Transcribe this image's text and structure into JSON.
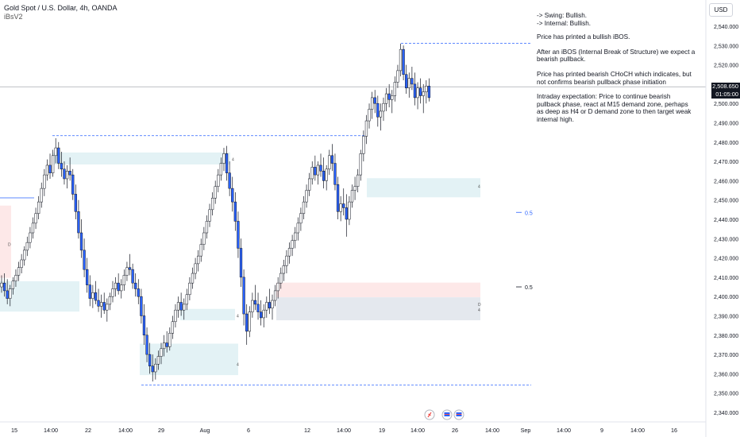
{
  "header": {
    "title": "Gold Spot / U.S. Dollar, 4h, OANDA",
    "indicator": "iBsV2"
  },
  "notes": [
    "-> Swing:  Bullish.\n-> Internal:  Bullish.",
    "Price has printed a bullish iBOS.",
    "After an iBOS (Internal Break of Structure) we expect a bearish pullback.",
    "Price has printed bearish CHoCH which indicates, but not confirms bearish pullback phase initiation",
    "Intraday expectation: Price to continue bearish pullback phase, react at M15 demand zone, perhaps as deep as H4 or D demand zone to then target weak internal high."
  ],
  "currency": "USD",
  "price_tag": {
    "price": "2,508.650",
    "countdown": "01:05:00"
  },
  "colors": {
    "up": "#ffffff",
    "down": "#2962ff",
    "wick": "#131722",
    "demand_zone": "#e3f2f5",
    "supply_zone": "#fde8e8",
    "d_zone": "#e4e8ee",
    "dashed_level": "#2962ff",
    "fib_label": "#2962ff"
  },
  "chart_data": {
    "type": "candlestick",
    "symbol": "XAUUSD",
    "timeframe": "4h",
    "ylim": [
      2337,
      2546
    ],
    "y_ticks": [
      2540,
      2530,
      2520,
      2510,
      2500,
      2490,
      2480,
      2470,
      2460,
      2450,
      2440,
      2430,
      2420,
      2410,
      2400,
      2390,
      2380,
      2370,
      2360,
      2350,
      2340
    ],
    "y_tick_labels": [
      "2,540.000",
      "2,530.000",
      "2,520.000",
      "2,510.000",
      "2,500.000",
      "2,490.000",
      "2,480.000",
      "2,470.000",
      "2,460.000",
      "2,450.000",
      "2,440.000",
      "2,430.000",
      "2,420.000",
      "2,410.000",
      "2,400.000",
      "2,390.000",
      "2,380.000",
      "2,370.000",
      "2,360.000",
      "2,350.000",
      "2,340.000"
    ],
    "x_labels": [
      "15",
      "14:00",
      "22",
      "14:00",
      "29",
      "Aug",
      "6",
      "12",
      "14:00",
      "19",
      "14:00",
      "26",
      "14:00",
      "Sep",
      "14:00",
      "9",
      "14:00",
      "16"
    ],
    "bars_total": 193,
    "current_price": 2508.65,
    "ohlc": [
      [
        2405,
        2411,
        2402,
        2407
      ],
      [
        2407,
        2412,
        2400,
        2403
      ],
      [
        2403,
        2409,
        2396,
        2399
      ],
      [
        2399,
        2406,
        2395,
        2404
      ],
      [
        2404,
        2410,
        2401,
        2408
      ],
      [
        2408,
        2414,
        2405,
        2411
      ],
      [
        2411,
        2418,
        2408,
        2415
      ],
      [
        2415,
        2422,
        2412,
        2419
      ],
      [
        2419,
        2426,
        2416,
        2424
      ],
      [
        2424,
        2431,
        2421,
        2428
      ],
      [
        2428,
        2436,
        2425,
        2433
      ],
      [
        2433,
        2441,
        2430,
        2438
      ],
      [
        2438,
        2446,
        2435,
        2443
      ],
      [
        2443,
        2452,
        2440,
        2449
      ],
      [
        2449,
        2459,
        2446,
        2456
      ],
      [
        2456,
        2466,
        2452,
        2463
      ],
      [
        2463,
        2471,
        2460,
        2468
      ],
      [
        2468,
        2474,
        2461,
        2464
      ],
      [
        2464,
        2476,
        2462,
        2473
      ],
      [
        2473,
        2482,
        2469,
        2477
      ],
      [
        2477,
        2480,
        2466,
        2469
      ],
      [
        2469,
        2475,
        2462,
        2466
      ],
      [
        2466,
        2470,
        2458,
        2461
      ],
      [
        2461,
        2468,
        2456,
        2465
      ],
      [
        2465,
        2472,
        2460,
        2463
      ],
      [
        2463,
        2466,
        2450,
        2453
      ],
      [
        2453,
        2458,
        2440,
        2444
      ],
      [
        2444,
        2450,
        2430,
        2433
      ],
      [
        2433,
        2440,
        2420,
        2424
      ],
      [
        2424,
        2430,
        2410,
        2414
      ],
      [
        2414,
        2420,
        2402,
        2406
      ],
      [
        2406,
        2411,
        2395,
        2399
      ],
      [
        2399,
        2406,
        2394,
        2402
      ],
      [
        2402,
        2408,
        2396,
        2398
      ],
      [
        2398,
        2404,
        2392,
        2395
      ],
      [
        2395,
        2401,
        2389,
        2397
      ],
      [
        2397,
        2402,
        2391,
        2393
      ],
      [
        2393,
        2399,
        2387,
        2396
      ],
      [
        2396,
        2402,
        2393,
        2400
      ],
      [
        2400,
        2408,
        2397,
        2404
      ],
      [
        2404,
        2410,
        2400,
        2407
      ],
      [
        2407,
        2412,
        2401,
        2403
      ],
      [
        2403,
        2409,
        2399,
        2406
      ],
      [
        2406,
        2414,
        2403,
        2411
      ],
      [
        2411,
        2418,
        2408,
        2415
      ],
      [
        2415,
        2422,
        2411,
        2414
      ],
      [
        2414,
        2417,
        2404,
        2407
      ],
      [
        2407,
        2412,
        2400,
        2404
      ],
      [
        2404,
        2409,
        2396,
        2400
      ],
      [
        2400,
        2404,
        2386,
        2390
      ],
      [
        2390,
        2396,
        2375,
        2380
      ],
      [
        2380,
        2384,
        2366,
        2370
      ],
      [
        2370,
        2376,
        2360,
        2364
      ],
      [
        2364,
        2370,
        2356,
        2361
      ],
      [
        2361,
        2368,
        2357,
        2365
      ],
      [
        2365,
        2372,
        2362,
        2369
      ],
      [
        2369,
        2376,
        2365,
        2373
      ],
      [
        2373,
        2380,
        2369,
        2376
      ],
      [
        2376,
        2382,
        2371,
        2374
      ],
      [
        2374,
        2384,
        2372,
        2381
      ],
      [
        2381,
        2390,
        2378,
        2387
      ],
      [
        2387,
        2396,
        2384,
        2393
      ],
      [
        2393,
        2400,
        2389,
        2397
      ],
      [
        2397,
        2402,
        2390,
        2393
      ],
      [
        2393,
        2399,
        2388,
        2396
      ],
      [
        2396,
        2404,
        2393,
        2401
      ],
      [
        2401,
        2410,
        2398,
        2407
      ],
      [
        2407,
        2415,
        2404,
        2412
      ],
      [
        2412,
        2420,
        2409,
        2417
      ],
      [
        2417,
        2424,
        2413,
        2421
      ],
      [
        2421,
        2430,
        2418,
        2427
      ],
      [
        2427,
        2436,
        2424,
        2433
      ],
      [
        2433,
        2442,
        2430,
        2439
      ],
      [
        2439,
        2448,
        2436,
        2445
      ],
      [
        2445,
        2454,
        2442,
        2451
      ],
      [
        2451,
        2460,
        2448,
        2457
      ],
      [
        2457,
        2466,
        2454,
        2463
      ],
      [
        2463,
        2472,
        2460,
        2469
      ],
      [
        2469,
        2477,
        2465,
        2474
      ],
      [
        2474,
        2478,
        2460,
        2464
      ],
      [
        2464,
        2470,
        2452,
        2456
      ],
      [
        2456,
        2462,
        2444,
        2449
      ],
      [
        2449,
        2454,
        2434,
        2439
      ],
      [
        2439,
        2444,
        2420,
        2425
      ],
      [
        2425,
        2430,
        2405,
        2410
      ],
      [
        2410,
        2414,
        2385,
        2391
      ],
      [
        2391,
        2396,
        2375,
        2382
      ],
      [
        2382,
        2395,
        2379,
        2392
      ],
      [
        2392,
        2402,
        2389,
        2398
      ],
      [
        2398,
        2406,
        2393,
        2396
      ],
      [
        2396,
        2402,
        2388,
        2392
      ],
      [
        2392,
        2398,
        2385,
        2389
      ],
      [
        2389,
        2396,
        2384,
        2393
      ],
      [
        2393,
        2400,
        2389,
        2397
      ],
      [
        2397,
        2404,
        2391,
        2394
      ],
      [
        2394,
        2401,
        2388,
        2398
      ],
      [
        2398,
        2406,
        2395,
        2403
      ],
      [
        2403,
        2410,
        2399,
        2407
      ],
      [
        2407,
        2415,
        2404,
        2412
      ],
      [
        2412,
        2419,
        2408,
        2416
      ],
      [
        2416,
        2424,
        2412,
        2421
      ],
      [
        2421,
        2428,
        2417,
        2425
      ],
      [
        2425,
        2432,
        2421,
        2429
      ],
      [
        2429,
        2436,
        2425,
        2433
      ],
      [
        2433,
        2441,
        2429,
        2438
      ],
      [
        2438,
        2446,
        2434,
        2443
      ],
      [
        2443,
        2452,
        2440,
        2449
      ],
      [
        2449,
        2458,
        2446,
        2455
      ],
      [
        2455,
        2464,
        2452,
        2461
      ],
      [
        2461,
        2470,
        2458,
        2467
      ],
      [
        2467,
        2473,
        2460,
        2463
      ],
      [
        2463,
        2470,
        2458,
        2468
      ],
      [
        2468,
        2474,
        2462,
        2465
      ],
      [
        2465,
        2472,
        2456,
        2460
      ],
      [
        2460,
        2468,
        2455,
        2466
      ],
      [
        2466,
        2476,
        2463,
        2473
      ],
      [
        2473,
        2479,
        2465,
        2469
      ],
      [
        2469,
        2474,
        2455,
        2458
      ],
      [
        2458,
        2462,
        2440,
        2444
      ],
      [
        2444,
        2452,
        2439,
        2448
      ],
      [
        2448,
        2456,
        2442,
        2446
      ],
      [
        2446,
        2453,
        2431,
        2440
      ],
      [
        2440,
        2452,
        2437,
        2449
      ],
      [
        2449,
        2458,
        2446,
        2455
      ],
      [
        2455,
        2462,
        2450,
        2457
      ],
      [
        2457,
        2466,
        2454,
        2463
      ],
      [
        2463,
        2476,
        2460,
        2474
      ],
      [
        2474,
        2486,
        2470,
        2483
      ],
      [
        2483,
        2494,
        2479,
        2491
      ],
      [
        2491,
        2500,
        2487,
        2497
      ],
      [
        2497,
        2506,
        2492,
        2503
      ],
      [
        2503,
        2507,
        2495,
        2500
      ],
      [
        2500,
        2504,
        2488,
        2493
      ],
      [
        2493,
        2500,
        2486,
        2496
      ],
      [
        2496,
        2503,
        2491,
        2500
      ],
      [
        2500,
        2508,
        2496,
        2505
      ],
      [
        2505,
        2510,
        2498,
        2502
      ],
      [
        2502,
        2507,
        2495,
        2504
      ],
      [
        2504,
        2514,
        2501,
        2511
      ],
      [
        2511,
        2520,
        2508,
        2517
      ],
      [
        2517,
        2531,
        2514,
        2528
      ],
      [
        2528,
        2530,
        2512,
        2515
      ],
      [
        2515,
        2520,
        2505,
        2508
      ],
      [
        2508,
        2516,
        2503,
        2513
      ],
      [
        2513,
        2519,
        2507,
        2510
      ],
      [
        2510,
        2516,
        2499,
        2503
      ],
      [
        2503,
        2511,
        2497,
        2508
      ],
      [
        2508,
        2513,
        2500,
        2504
      ],
      [
        2504,
        2510,
        2495,
        2506
      ],
      [
        2506,
        2512,
        2500,
        2509
      ],
      [
        2509,
        2513,
        2501,
        2503
      ]
    ],
    "zones": [
      {
        "kind": "demand",
        "label": "4",
        "y_top": 2474.6,
        "y_bottom": 2468.4
      },
      {
        "kind": "demand",
        "label": "4",
        "y_top": 2461.3,
        "y_bottom": 2451.4
      },
      {
        "kind": "demand",
        "label": "",
        "y_top": 2407.9,
        "y_bottom": 2392.2
      },
      {
        "kind": "supply",
        "label": "",
        "y_top": 2407.2,
        "y_bottom": 2399.6
      },
      {
        "kind": "d-zone",
        "label": "D",
        "y_top": 2399.6,
        "y_bottom": 2387.7
      },
      {
        "kind": "demand",
        "label": "4",
        "y_top": 2393.6,
        "y_bottom": 2387.7
      },
      {
        "kind": "demand",
        "label": "4",
        "y_top": 2375.6,
        "y_bottom": 2359.3
      },
      {
        "kind": "supply",
        "label": "D",
        "y_top": 2447.1,
        "y_bottom": 2409.7
      }
    ],
    "levels": [
      {
        "kind": "dashed",
        "price": 2531.2
      },
      {
        "kind": "dashed",
        "price": 2483.3
      },
      {
        "kind": "dashed",
        "price": 2354.1
      },
      {
        "kind": "solid",
        "price": 2451.1
      },
      {
        "kind": "current",
        "price": 2508.65
      }
    ],
    "fib_labels": [
      {
        "text": "0.5",
        "price": 2443.6,
        "color": "blue"
      },
      {
        "text": "0.5",
        "price": 2405.0,
        "color": "black"
      }
    ]
  }
}
